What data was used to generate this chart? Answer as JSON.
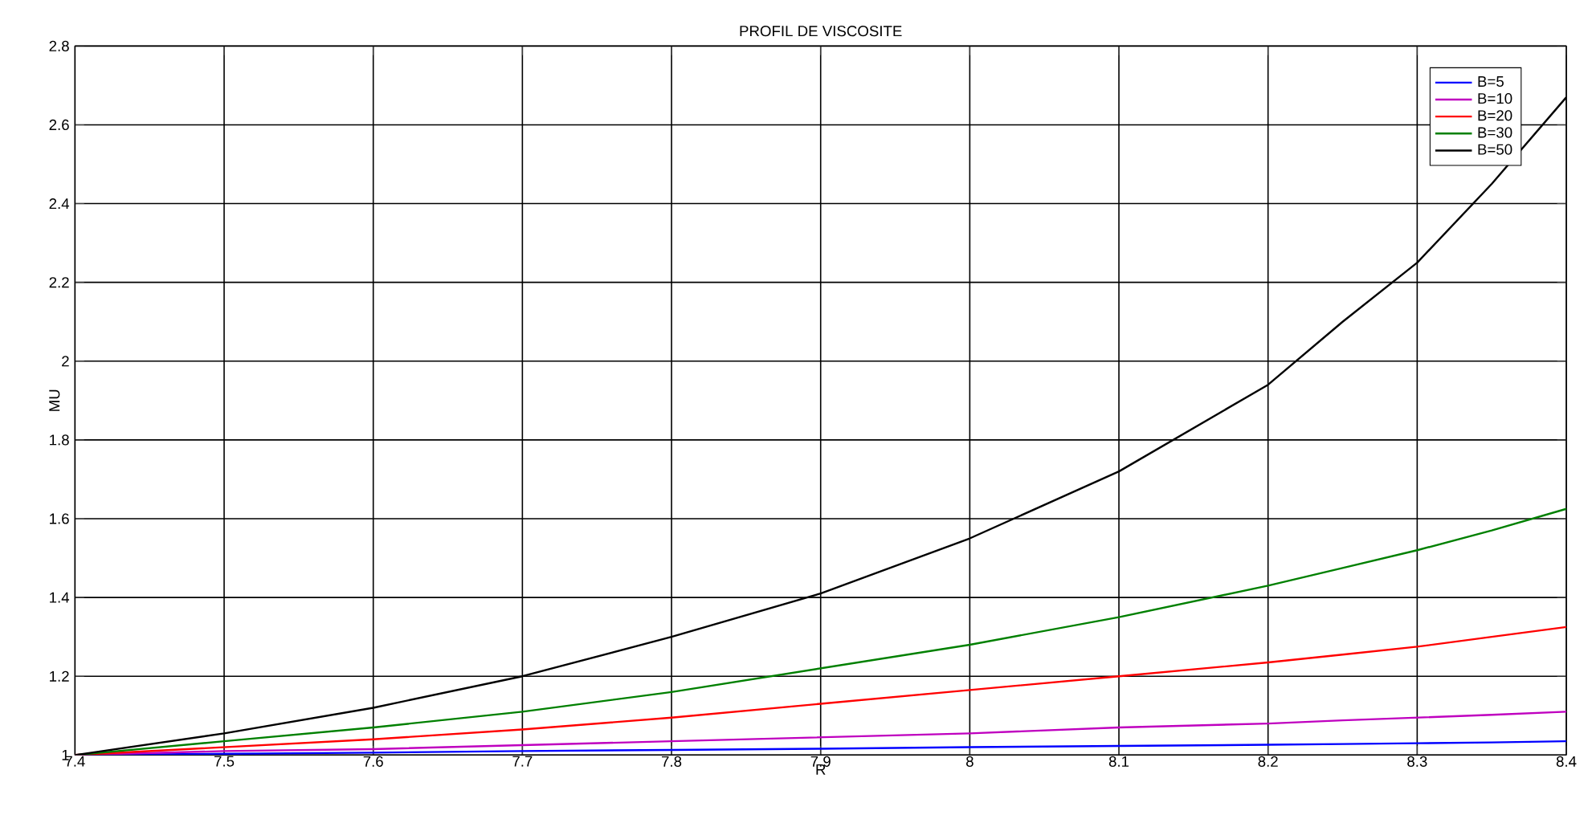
{
  "chart_data": {
    "type": "line",
    "title": "PROFIL DE VISCOSITE",
    "xlabel": "R",
    "ylabel": "MU",
    "x": [
      7.4,
      7.5,
      7.6,
      7.7,
      7.8,
      7.9,
      8,
      8.1,
      8.2,
      8.25,
      8.3,
      8.35,
      8.4
    ],
    "series": [
      {
        "name": "B=5",
        "color": "#0000ff",
        "values": [
          1,
          1.003,
          1.006,
          1.01,
          1.013,
          1.016,
          1.02,
          1.023,
          1.026,
          1.028,
          1.03,
          1.032,
          1.035
        ]
      },
      {
        "name": "B=10",
        "color": "#bf00bf",
        "values": [
          1,
          1.01,
          1.015,
          1.025,
          1.035,
          1.045,
          1.055,
          1.07,
          1.08,
          1.088,
          1.095,
          1.102,
          1.11
        ]
      },
      {
        "name": "B=20",
        "color": "#ff0000",
        "values": [
          1,
          1.02,
          1.04,
          1.065,
          1.095,
          1.13,
          1.165,
          1.2,
          1.235,
          1.255,
          1.275,
          1.3,
          1.325
        ]
      },
      {
        "name": "B=30",
        "color": "#008000",
        "values": [
          1,
          1.035,
          1.07,
          1.11,
          1.16,
          1.22,
          1.28,
          1.35,
          1.43,
          1.475,
          1.52,
          1.57,
          1.625
        ]
      },
      {
        "name": "B=50",
        "color": "#000000",
        "values": [
          1,
          1.055,
          1.12,
          1.2,
          1.3,
          1.41,
          1.55,
          1.72,
          1.94,
          2.1,
          2.25,
          2.45,
          2.67
        ]
      }
    ],
    "xlim": [
      7.4,
      8.4
    ],
    "ylim": [
      1,
      2.8
    ],
    "xticks": [
      7.4,
      7.5,
      7.6,
      7.7,
      7.8,
      7.9,
      8,
      8.1,
      8.2,
      8.3,
      8.4
    ],
    "yticks": [
      1,
      1.2,
      1.4,
      1.6,
      1.8,
      2,
      2.2,
      2.4,
      2.6,
      2.8
    ],
    "grid": true,
    "legend": "top right",
    "marker": "none",
    "line_style": "solid"
  }
}
